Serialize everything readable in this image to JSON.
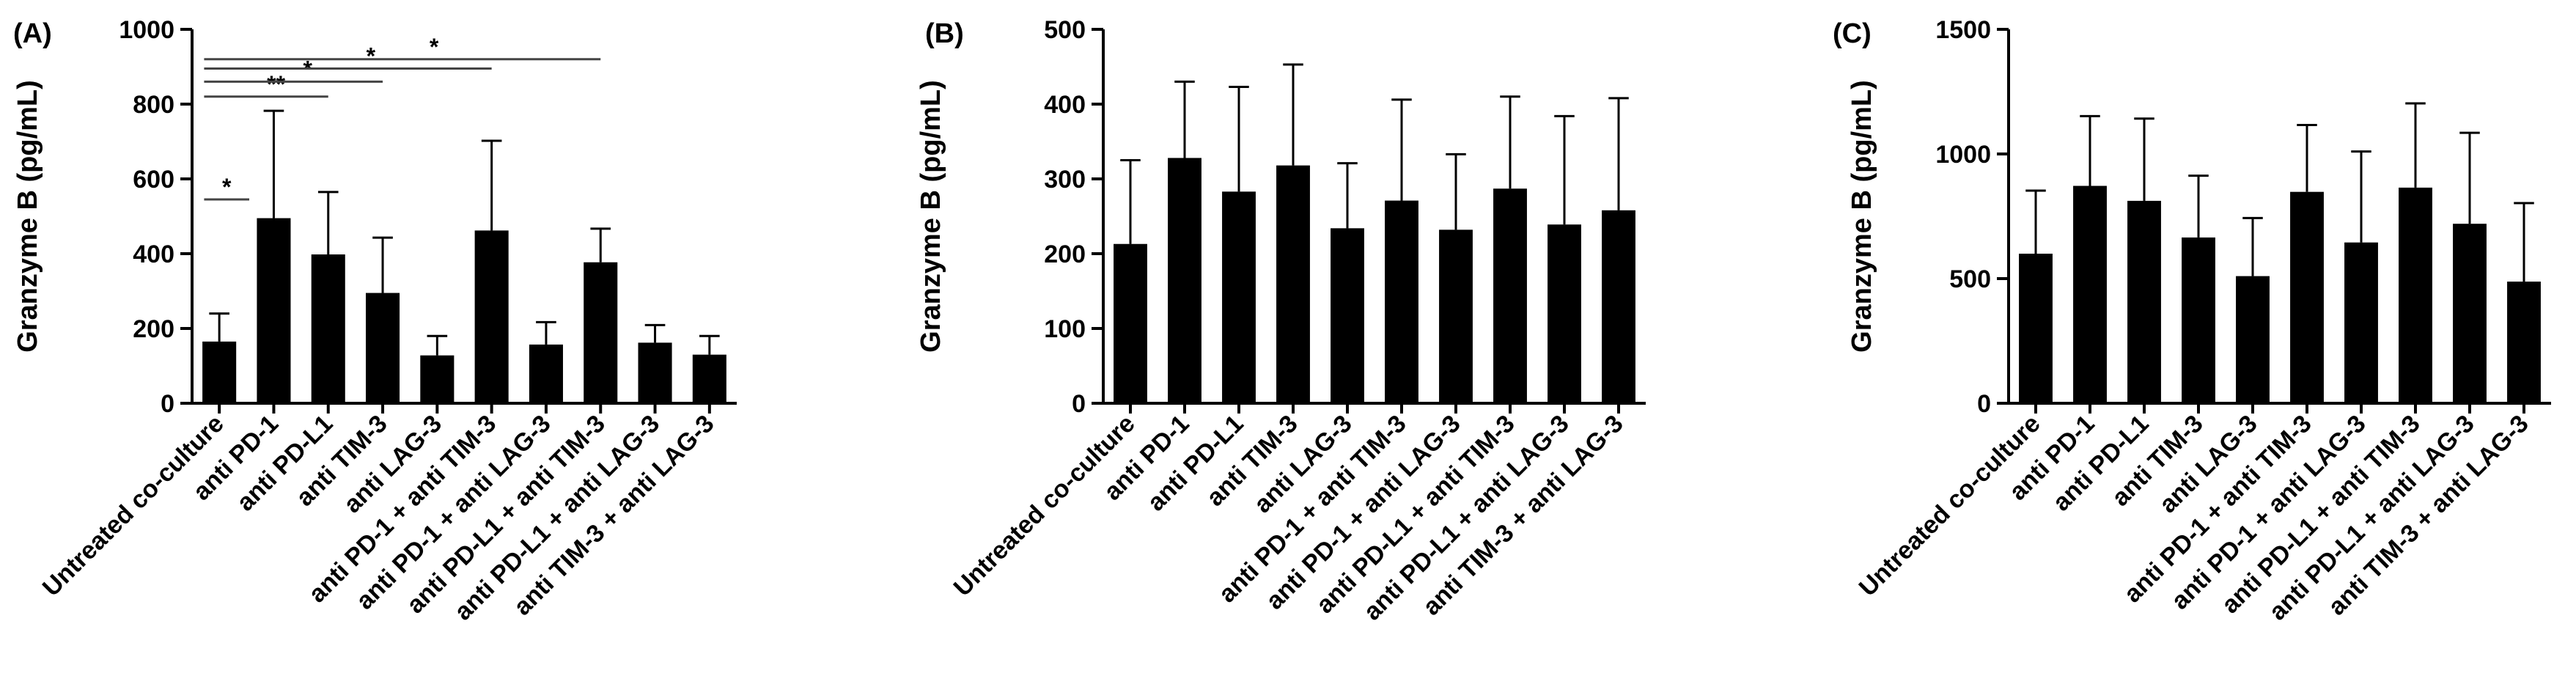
{
  "chart_data": [
    {
      "type": "bar",
      "panel_label": "(A)",
      "ylabel": "Granzyme B (pg/mL)",
      "ylim": [
        0,
        1000
      ],
      "yticks": [
        0,
        200,
        400,
        600,
        800,
        1000
      ],
      "categories": [
        "Untreated co-culture",
        "anti PD-1",
        "anti PD-L1",
        "anti TIM-3",
        "anti LAG-3",
        "anti PD-1 + anti TIM-3",
        "anti PD-1 + anti LAG-3",
        "anti PD-L1 + anti TIM-3",
        "anti PD-L1 + anti LAG-3",
        "anti TIM-3 + anti LAG-3"
      ],
      "values": [
        165,
        495,
        398,
        295,
        128,
        462,
        157,
        377,
        162,
        130
      ],
      "errors": [
        75,
        287,
        167,
        148,
        52,
        240,
        60,
        90,
        47,
        50
      ],
      "bar_color": "#000000",
      "significance": [
        {
          "from": 0,
          "to": 0,
          "y": 545,
          "label": "*"
        },
        {
          "from": 0,
          "to": 2,
          "y": 820,
          "label": "**"
        },
        {
          "from": 0,
          "to": 3,
          "y": 860,
          "label": "*"
        },
        {
          "from": 0,
          "to": 5,
          "y": 895,
          "label": "*"
        },
        {
          "from": 0,
          "to": 7,
          "y": 920,
          "label": "*"
        }
      ]
    },
    {
      "type": "bar",
      "panel_label": "(B)",
      "ylabel": "Granzyme B (pg/mL)",
      "ylim": [
        0,
        500
      ],
      "yticks": [
        0,
        100,
        200,
        300,
        400,
        500
      ],
      "categories": [
        "Untreated co-culture",
        "anti PD-1",
        "anti PD-L1",
        "anti TIM-3",
        "anti LAG-3",
        "anti PD-1 + anti TIM-3",
        "anti PD-1 + anti LAG-3",
        "anti PD-L1 + anti TIM-3",
        "anti PD-L1 + anti LAG-3",
        "anti TIM-3 + anti LAG-3"
      ],
      "values": [
        213,
        328,
        283,
        318,
        234,
        271,
        232,
        287,
        239,
        258
      ],
      "errors": [
        112,
        102,
        140,
        135,
        87,
        135,
        101,
        123,
        145,
        150
      ],
      "bar_color": "#000000",
      "significance": []
    },
    {
      "type": "bar",
      "panel_label": "(C)",
      "ylabel": "Granzyme B (pg/mL)",
      "ylim": [
        0,
        1500
      ],
      "yticks": [
        0,
        500,
        1000,
        1500
      ],
      "categories": [
        "Untreated co-culture",
        "anti PD-1",
        "anti PD-L1",
        "anti TIM-3",
        "anti LAG-3",
        "anti PD-1 + anti TIM-3",
        "anti PD-1 + anti LAG-3",
        "anti PD-L1 + anti TIM-3",
        "anti PD-L1 + anti LAG-3",
        "anti TIM-3 + anti LAG-3"
      ],
      "values": [
        600,
        872,
        812,
        665,
        510,
        848,
        645,
        865,
        720,
        488
      ],
      "errors": [
        253,
        280,
        330,
        248,
        233,
        268,
        365,
        338,
        365,
        315
      ],
      "bar_color": "#000000",
      "significance": []
    }
  ]
}
